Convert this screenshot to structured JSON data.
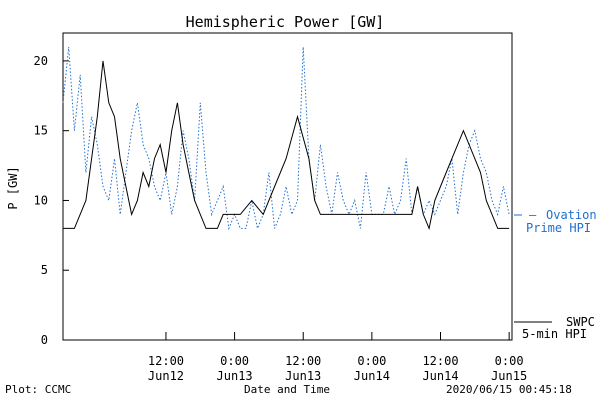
{
  "chart_data": {
    "type": "line",
    "title": "Hemispheric Power [GW]",
    "ylabel": "P [GW]",
    "xlabel": "Date and Time",
    "ylim": [
      0,
      22
    ],
    "yticks": [
      0,
      5,
      10,
      15,
      20
    ],
    "xlim": [
      "2020-06-11 18:00",
      "2020-06-15 00:30"
    ],
    "xticks": [
      {
        "time": "2020-06-12 12:00",
        "line1": "12:00",
        "line2": "Jun12"
      },
      {
        "time": "2020-06-13 00:00",
        "line1": "0:00",
        "line2": "Jun13"
      },
      {
        "time": "2020-06-13 12:00",
        "line1": "12:00",
        "line2": "Jun13"
      },
      {
        "time": "2020-06-14 00:00",
        "line1": "0:00",
        "line2": "Jun14"
      },
      {
        "time": "2020-06-14 12:00",
        "line1": "12:00",
        "line2": "Jun14"
      },
      {
        "time": "2020-06-15 00:00",
        "line1": "0:00",
        "line2": "Jun15"
      }
    ],
    "grid": false,
    "series": [
      {
        "legend_line1": "Ovation",
        "legend_line2": "Prime HPI",
        "color": "#1f6fd0",
        "style": "dotted",
        "x": [
          "2020-06-11 18:00",
          "2020-06-11 19:00",
          "2020-06-11 20:00",
          "2020-06-11 21:00",
          "2020-06-11 22:00",
          "2020-06-11 23:00",
          "2020-06-12 00:00",
          "2020-06-12 01:00",
          "2020-06-12 02:00",
          "2020-06-12 03:00",
          "2020-06-12 04:00",
          "2020-06-12 05:00",
          "2020-06-12 06:00",
          "2020-06-12 07:00",
          "2020-06-12 08:00",
          "2020-06-12 09:00",
          "2020-06-12 10:00",
          "2020-06-12 11:00",
          "2020-06-12 12:00",
          "2020-06-12 13:00",
          "2020-06-12 14:00",
          "2020-06-12 15:00",
          "2020-06-12 16:00",
          "2020-06-12 17:00",
          "2020-06-12 18:00",
          "2020-06-12 19:00",
          "2020-06-12 20:00",
          "2020-06-12 21:00",
          "2020-06-12 22:00",
          "2020-06-12 23:00",
          "2020-06-13 00:00",
          "2020-06-13 01:00",
          "2020-06-13 02:00",
          "2020-06-13 03:00",
          "2020-06-13 04:00",
          "2020-06-13 05:00",
          "2020-06-13 06:00",
          "2020-06-13 07:00",
          "2020-06-13 08:00",
          "2020-06-13 09:00",
          "2020-06-13 10:00",
          "2020-06-13 11:00",
          "2020-06-13 12:00",
          "2020-06-13 13:00",
          "2020-06-13 14:00",
          "2020-06-13 15:00",
          "2020-06-13 16:00",
          "2020-06-13 17:00",
          "2020-06-13 18:00",
          "2020-06-13 19:00",
          "2020-06-13 20:00",
          "2020-06-13 21:00",
          "2020-06-13 22:00",
          "2020-06-13 23:00",
          "2020-06-14 00:00",
          "2020-06-14 01:00",
          "2020-06-14 02:00",
          "2020-06-14 03:00",
          "2020-06-14 04:00",
          "2020-06-14 05:00",
          "2020-06-14 06:00",
          "2020-06-14 07:00",
          "2020-06-14 08:00",
          "2020-06-14 09:00",
          "2020-06-14 10:00",
          "2020-06-14 11:00",
          "2020-06-14 12:00",
          "2020-06-14 13:00",
          "2020-06-14 14:00",
          "2020-06-14 15:00",
          "2020-06-14 16:00",
          "2020-06-14 17:00",
          "2020-06-14 18:00",
          "2020-06-14 19:00",
          "2020-06-14 20:00",
          "2020-06-14 21:00",
          "2020-06-14 22:00",
          "2020-06-14 23:00",
          "2020-06-15 00:00"
        ],
        "values": [
          17,
          21,
          15,
          19,
          12,
          16,
          14,
          11,
          10,
          13,
          9,
          12,
          15,
          17,
          14,
          13,
          11,
          10,
          12,
          9,
          11,
          15,
          13,
          10,
          17,
          12,
          9,
          10,
          11,
          8,
          9,
          8,
          8,
          10,
          8,
          9,
          12,
          8,
          9,
          11,
          9,
          10,
          21,
          13,
          10,
          14,
          11,
          9,
          12,
          10,
          9,
          10,
          8,
          12,
          9,
          9,
          9,
          11,
          9,
          10,
          13,
          9,
          11,
          9,
          10,
          9,
          10,
          11,
          13,
          9,
          12,
          14,
          15,
          13,
          12,
          10,
          9,
          11,
          9
        ]
      },
      {
        "legend_line1": "SWPC",
        "legend_line2": "5-min HPI",
        "color": "#000000",
        "style": "solid",
        "x": [
          "2020-06-11 18:00",
          "2020-06-11 20:00",
          "2020-06-11 22:00",
          "2020-06-11 23:00",
          "2020-06-12 00:00",
          "2020-06-12 01:00",
          "2020-06-12 02:00",
          "2020-06-12 03:00",
          "2020-06-12 04:00",
          "2020-06-12 05:00",
          "2020-06-12 06:00",
          "2020-06-12 07:00",
          "2020-06-12 08:00",
          "2020-06-12 09:00",
          "2020-06-12 10:00",
          "2020-06-12 11:00",
          "2020-06-12 12:00",
          "2020-06-12 13:00",
          "2020-06-12 14:00",
          "2020-06-12 15:00",
          "2020-06-12 16:00",
          "2020-06-12 17:00",
          "2020-06-12 18:00",
          "2020-06-12 19:00",
          "2020-06-12 20:00",
          "2020-06-12 21:00",
          "2020-06-12 22:00",
          "2020-06-12 23:00",
          "2020-06-13 01:00",
          "2020-06-13 03:00",
          "2020-06-13 05:00",
          "2020-06-13 07:00",
          "2020-06-13 09:00",
          "2020-06-13 11:00",
          "2020-06-13 13:00",
          "2020-06-13 14:00",
          "2020-06-13 15:00",
          "2020-06-13 16:00",
          "2020-06-13 17:00",
          "2020-06-13 18:00",
          "2020-06-13 19:00",
          "2020-06-13 20:00",
          "2020-06-13 21:00",
          "2020-06-14 00:00",
          "2020-06-14 04:00",
          "2020-06-14 07:00",
          "2020-06-14 08:00",
          "2020-06-14 09:00",
          "2020-06-14 10:00",
          "2020-06-14 11:00",
          "2020-06-14 12:00",
          "2020-06-14 13:00",
          "2020-06-14 14:00",
          "2020-06-14 15:00",
          "2020-06-14 16:00",
          "2020-06-14 17:00",
          "2020-06-14 18:00",
          "2020-06-14 19:00",
          "2020-06-14 20:00",
          "2020-06-14 21:00",
          "2020-06-14 22:00",
          "2020-06-14 23:00",
          "2020-06-15 00:00"
        ],
        "values": [
          8,
          8,
          10,
          13,
          16,
          20,
          17,
          16,
          13,
          11,
          9,
          10,
          12,
          11,
          13,
          14,
          12,
          15,
          17,
          14,
          12,
          10,
          9,
          8,
          8,
          8,
          9,
          9,
          9,
          10,
          9,
          11,
          13,
          16,
          13,
          10,
          9,
          9,
          9,
          9,
          9,
          9,
          9,
          9,
          9,
          9,
          11,
          9,
          8,
          10,
          11,
          12,
          13,
          14,
          15,
          14,
          13,
          12,
          10,
          9,
          8,
          8,
          8
        ]
      }
    ]
  },
  "footer": {
    "left": "Plot: CCMC",
    "center": "Date and Time",
    "right": "2020/06/15 00:45:18"
  }
}
